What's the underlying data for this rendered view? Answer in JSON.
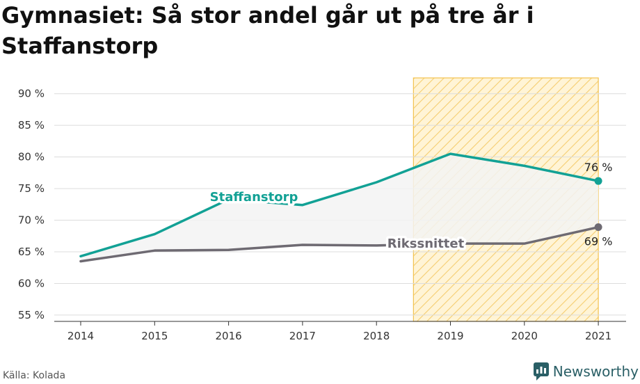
{
  "title": "Gymnasiet: Så stor andel går ut på tre år i Staffanstorp",
  "source": "Källa: Kolada",
  "brand": {
    "name": "Newsworthy",
    "icon": "newsworthy-logo-icon"
  },
  "colors": {
    "staffanstorp": "#12a195",
    "rikssnittet": "#6e6a72",
    "highlight_stroke": "#f2c14e",
    "highlight_fill": "#fff4d6",
    "band_fill": "#f3f3f3",
    "grid": "#dcdcdc"
  },
  "chart_data": {
    "type": "line",
    "x": [
      2014,
      2015,
      2016,
      2017,
      2018,
      2019,
      2020,
      2021
    ],
    "ylim": [
      54,
      92.5
    ],
    "yticks": [
      "90 %",
      "85 %",
      "80 %",
      "75 %",
      "70 %",
      "65 %",
      "60 %",
      "55 %"
    ],
    "ytick_values": [
      90,
      85,
      80,
      75,
      70,
      65,
      60,
      55
    ],
    "grid": true,
    "highlight_range": [
      2018.5,
      2021
    ],
    "series": [
      {
        "name": "Staffanstorp",
        "values": [
          64.3,
          67.8,
          73.3,
          72.4,
          76.0,
          80.5,
          78.6,
          76.2
        ],
        "end_label": "76 %"
      },
      {
        "name": "Rikssnittet",
        "values": [
          63.5,
          65.2,
          65.3,
          66.1,
          66.0,
          66.3,
          66.3,
          68.9
        ],
        "end_label": "69 %"
      }
    ]
  }
}
